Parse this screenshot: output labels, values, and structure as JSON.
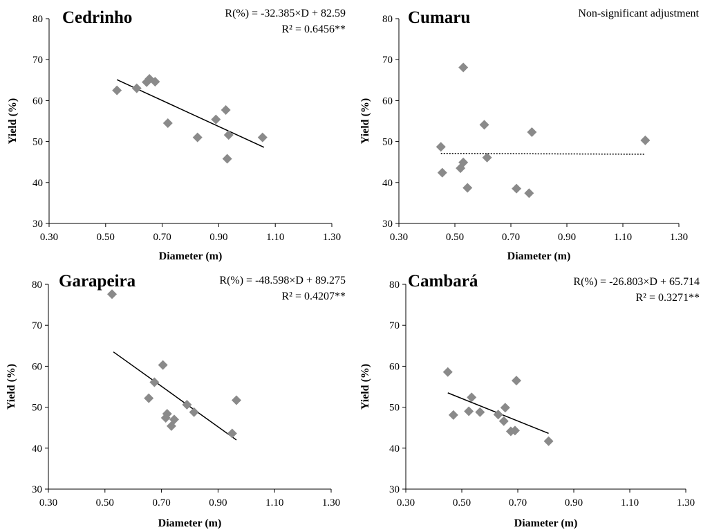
{
  "chart_data": [
    {
      "type": "scatter",
      "title": "Cedrinho",
      "xlabel": "Diameter (m)",
      "ylabel": "Yield (%)",
      "xlim": [
        0.3,
        1.3
      ],
      "ylim": [
        30,
        80
      ],
      "xticks": [
        "0.30",
        "0.50",
        "0.70",
        "0.90",
        "1.10",
        "1.30"
      ],
      "yticks": [
        "30",
        "40",
        "50",
        "60",
        "70",
        "80"
      ],
      "annotation_lines": [
        "R(%) = -32.385×D + 82.59",
        "R² = 0.6456**"
      ],
      "trendline": {
        "style": "solid",
        "x": [
          0.54,
          1.06
        ],
        "y": [
          65.1,
          48.6
        ]
      },
      "points": [
        {
          "x": 0.54,
          "y": 62.5
        },
        {
          "x": 0.61,
          "y": 63.0
        },
        {
          "x": 0.645,
          "y": 64.5
        },
        {
          "x": 0.655,
          "y": 65.3
        },
        {
          "x": 0.675,
          "y": 64.6
        },
        {
          "x": 0.72,
          "y": 54.5
        },
        {
          "x": 0.825,
          "y": 51.0
        },
        {
          "x": 0.89,
          "y": 55.4
        },
        {
          "x": 0.925,
          "y": 57.7
        },
        {
          "x": 0.935,
          "y": 51.6
        },
        {
          "x": 0.93,
          "y": 45.8
        },
        {
          "x": 1.055,
          "y": 51.0
        }
      ]
    },
    {
      "type": "scatter",
      "title": "Cumaru",
      "xlabel": "Diameter (m)",
      "ylabel": "Yield (%)",
      "xlim": [
        0.3,
        1.3
      ],
      "ylim": [
        30,
        80
      ],
      "xticks": [
        "0.30",
        "0.50",
        "0.70",
        "0.90",
        "1.10",
        "1.30"
      ],
      "yticks": [
        "30",
        "40",
        "50",
        "60",
        "70",
        "80"
      ],
      "annotation_lines": [
        "Non-significant adjustment"
      ],
      "trendline": {
        "style": "dotted",
        "x": [
          0.45,
          1.18
        ],
        "y": [
          47.1,
          46.9
        ]
      },
      "points": [
        {
          "x": 0.45,
          "y": 48.7
        },
        {
          "x": 0.455,
          "y": 42.4
        },
        {
          "x": 0.52,
          "y": 43.5
        },
        {
          "x": 0.53,
          "y": 44.9
        },
        {
          "x": 0.53,
          "y": 68.1
        },
        {
          "x": 0.545,
          "y": 38.7
        },
        {
          "x": 0.605,
          "y": 54.1
        },
        {
          "x": 0.615,
          "y": 46.1
        },
        {
          "x": 0.72,
          "y": 38.5
        },
        {
          "x": 0.765,
          "y": 37.4
        },
        {
          "x": 0.775,
          "y": 52.3
        },
        {
          "x": 1.18,
          "y": 50.3
        }
      ]
    },
    {
      "type": "scatter",
      "title": "Garapeira",
      "xlabel": "Diameter (m)",
      "ylabel": "Yield (%)",
      "xlim": [
        0.3,
        1.3
      ],
      "ylim": [
        30,
        80
      ],
      "xticks": [
        "0.30",
        "0.50",
        "0.70",
        "0.90",
        "1.10",
        "1.30"
      ],
      "yticks": [
        "30",
        "40",
        "50",
        "60",
        "70",
        "80"
      ],
      "annotation_lines": [
        "R(%) = -48.598×D + 89.275",
        "R² = 0.4207**"
      ],
      "trendline": {
        "style": "solid",
        "x": [
          0.53,
          0.965
        ],
        "y": [
          63.5,
          42.0
        ]
      },
      "points": [
        {
          "x": 0.525,
          "y": 77.6
        },
        {
          "x": 0.655,
          "y": 52.2
        },
        {
          "x": 0.675,
          "y": 56.1
        },
        {
          "x": 0.705,
          "y": 60.3
        },
        {
          "x": 0.715,
          "y": 47.4
        },
        {
          "x": 0.72,
          "y": 48.4
        },
        {
          "x": 0.735,
          "y": 45.4
        },
        {
          "x": 0.745,
          "y": 47.0
        },
        {
          "x": 0.79,
          "y": 50.6
        },
        {
          "x": 0.815,
          "y": 48.8
        },
        {
          "x": 0.95,
          "y": 43.6
        },
        {
          "x": 0.965,
          "y": 51.7
        }
      ]
    },
    {
      "type": "scatter",
      "title": "Cambará",
      "xlabel": "Diameter (m)",
      "ylabel": "Yield (%)",
      "xlim": [
        0.3,
        1.3
      ],
      "ylim": [
        30,
        80
      ],
      "xticks": [
        "0.30",
        "0.50",
        "0.70",
        "0.90",
        "1.10",
        "1.30"
      ],
      "yticks": [
        "30",
        "40",
        "50",
        "60",
        "70",
        "80"
      ],
      "annotation_lines": [
        "R(%) = -26.803×D + 65.714",
        "R² = 0.3271**"
      ],
      "trendline": {
        "style": "solid",
        "x": [
          0.45,
          0.81
        ],
        "y": [
          53.5,
          43.6
        ]
      },
      "points": [
        {
          "x": 0.45,
          "y": 58.6
        },
        {
          "x": 0.47,
          "y": 48.1
        },
        {
          "x": 0.525,
          "y": 49.0
        },
        {
          "x": 0.535,
          "y": 52.4
        },
        {
          "x": 0.565,
          "y": 48.8
        },
        {
          "x": 0.63,
          "y": 48.2
        },
        {
          "x": 0.65,
          "y": 46.6
        },
        {
          "x": 0.655,
          "y": 49.9
        },
        {
          "x": 0.675,
          "y": 44.1
        },
        {
          "x": 0.69,
          "y": 44.3
        },
        {
          "x": 0.695,
          "y": 56.5
        },
        {
          "x": 0.81,
          "y": 41.7
        }
      ]
    }
  ]
}
